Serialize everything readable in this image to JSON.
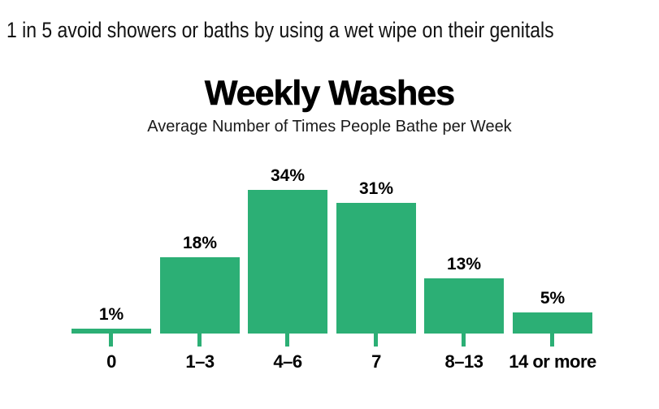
{
  "headline": "1 in 5 avoid showers or baths by using a wet wipe on their genitals",
  "chart_data": {
    "type": "bar",
    "title": "Weekly Washes",
    "subtitle": "Average Number of Times People Bathe per Week",
    "categories": [
      "0",
      "1–3",
      "4–6",
      "7",
      "8–13",
      "14 or more"
    ],
    "values": [
      1,
      18,
      34,
      31,
      13,
      5
    ],
    "value_labels": [
      "1%",
      "18%",
      "34%",
      "31%",
      "13%",
      "5%"
    ],
    "xlabel": "",
    "ylabel": "",
    "ylim": [
      0,
      36
    ],
    "grid": false,
    "legend": false,
    "bar_color": "#2caf75",
    "text_color": "#000000",
    "background_color": "#ffffff"
  }
}
